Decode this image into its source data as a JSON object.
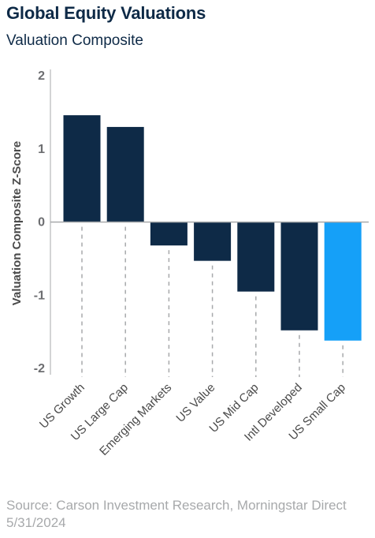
{
  "header": {
    "title": "Global Equity Valuations",
    "subtitle": "Valuation Composite"
  },
  "footer": {
    "source": "Source: Carson Investment Research, Morningstar Direct 5/31/2024"
  },
  "colors": {
    "bar_default": "#0e2a47",
    "bar_highlight": "#15a0f8",
    "axis": "#a7a9ab",
    "tick_label": "#6d6e71",
    "category_label": "#4a4a4a"
  },
  "chart_data": {
    "type": "bar",
    "title": "Global Equity Valuations",
    "subtitle": "Valuation Composite",
    "xlabel": "",
    "ylabel": "Valuation Composite Z-Score",
    "ylim": [
      -2,
      2
    ],
    "yticks": [
      2,
      1,
      0,
      -1,
      -2
    ],
    "grid": false,
    "legend": "none",
    "categories": [
      "US Growth",
      "US Large Cap",
      "Emerging Markets",
      "US Value",
      "US Mid Cap",
      "Intl Developed",
      "US Small Cap"
    ],
    "values": [
      1.46,
      1.3,
      -0.32,
      -0.53,
      -0.95,
      -1.48,
      -1.62
    ],
    "highlight": "US Small Cap"
  }
}
